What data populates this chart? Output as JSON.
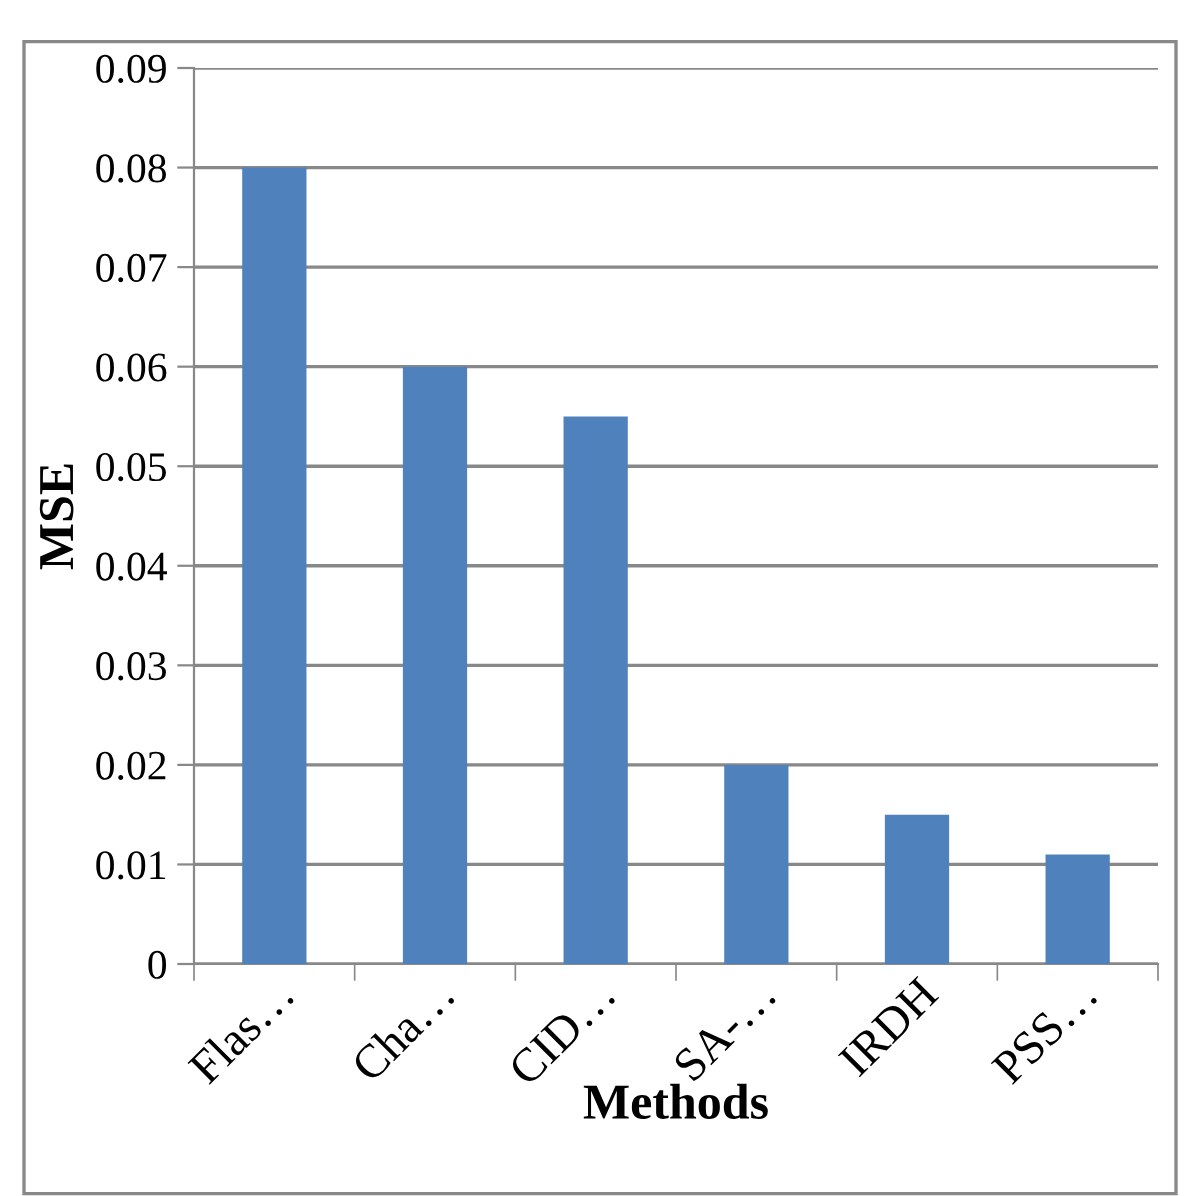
{
  "chart_data": {
    "type": "bar",
    "xlabel": "Methods",
    "ylabel": "MSE",
    "categories": [
      "Flas…",
      "Cha…",
      "CID…",
      "SA-…",
      "IRDH",
      "PSS…"
    ],
    "values": [
      0.08,
      0.06,
      0.055,
      0.02,
      0.015,
      0.011
    ],
    "color": "#4f81bd",
    "ylim": [
      0,
      0.09
    ],
    "yticks": [
      0,
      0.01,
      0.02,
      0.03,
      0.04,
      0.05,
      0.06,
      0.07,
      0.08,
      0.09
    ],
    "grid": "y"
  }
}
